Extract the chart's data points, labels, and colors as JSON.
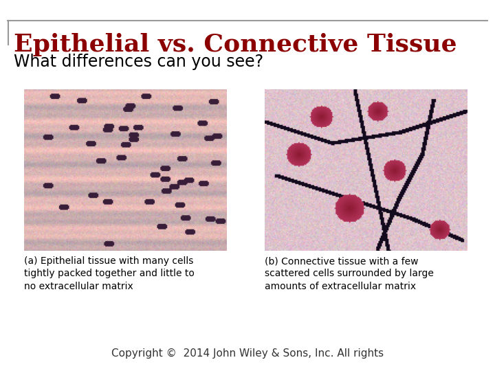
{
  "title": "Epithelial vs. Connective Tissue",
  "subtitle": "What differences can you see?",
  "title_color": "#8B0000",
  "subtitle_color": "#000000",
  "background_color": "#FFFFFF",
  "border_color": "#999999",
  "caption_a": "(a) Epithelial tissue with many cells\ntightly packed together and little to\nno extracellular matrix",
  "caption_b": "(b) Connective tissue with a few\nscattered cells surrounded by large\namounts of extracellular matrix",
  "copyright": "Copyright ©  2014 John Wiley & Sons, Inc. All rights",
  "title_fontsize": 26,
  "subtitle_fontsize": 17,
  "caption_fontsize": 10,
  "copyright_fontsize": 11
}
